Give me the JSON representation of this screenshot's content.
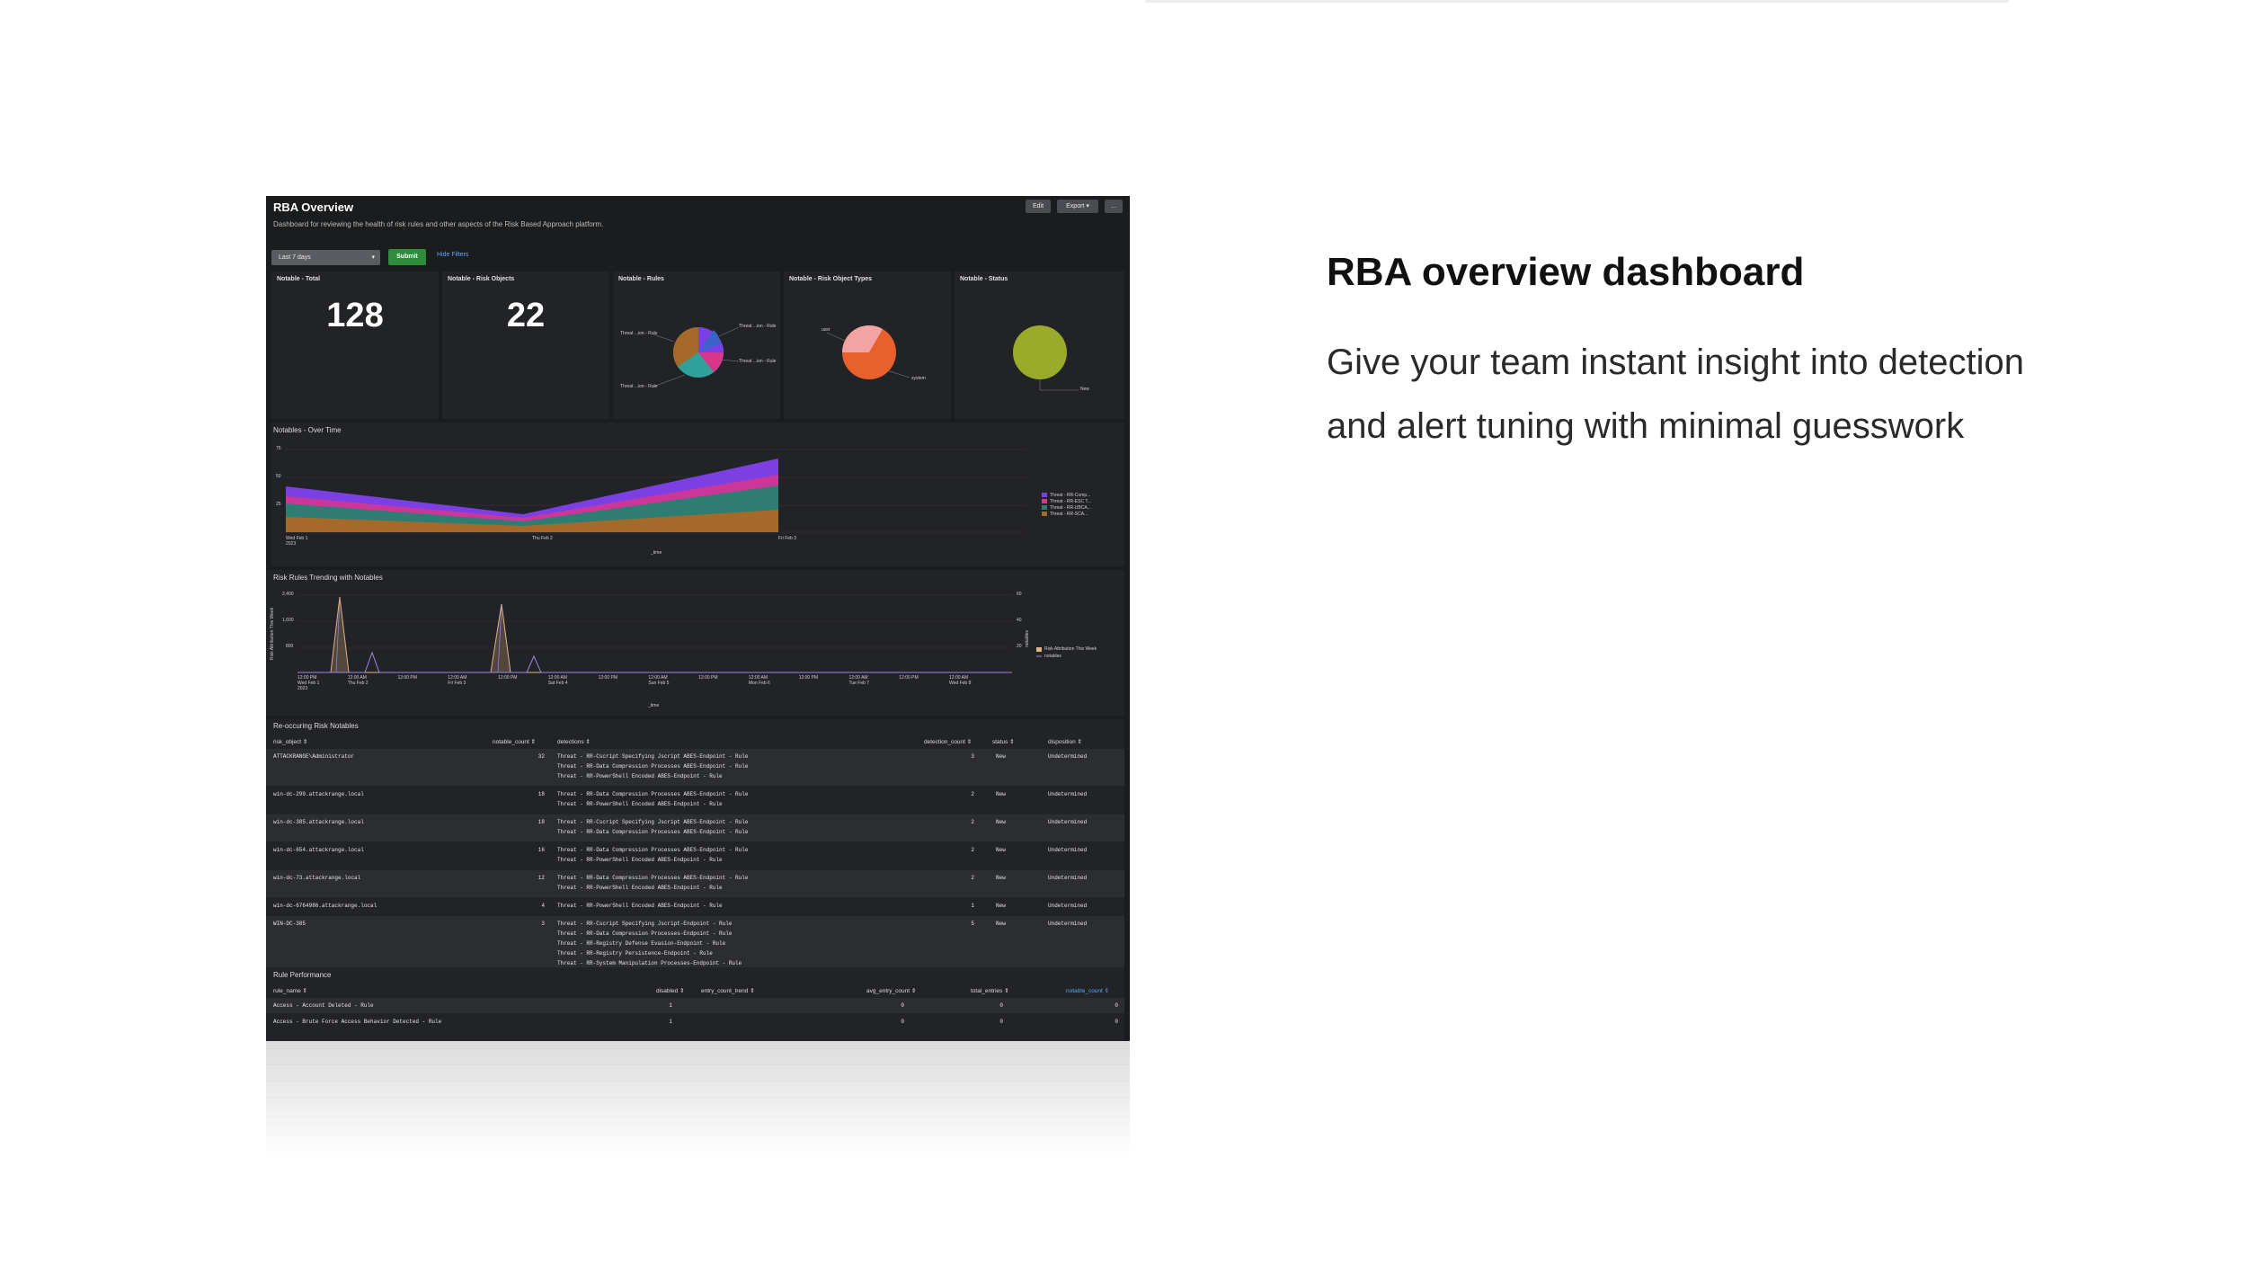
{
  "slide": {
    "heading": "RBA overview dashboard",
    "body": "Give your team instant insight into detection and alert tuning with minimal guesswork"
  },
  "dashboard": {
    "title": "RBA Overview",
    "description": "Dashboard for reviewing the health of risk rules and other aspects of the Risk Based Approach platform.",
    "buttons": {
      "edit": "Edit",
      "export": "Export ▾",
      "more": "..."
    },
    "time_picker": "Last 7 days",
    "submit": "Submit",
    "hide_filters": "Hide Filters",
    "kpis": [
      {
        "title": "Notable - Total",
        "value": "128"
      },
      {
        "title": "Notable - Risk Objects",
        "value": "22"
      }
    ],
    "pie_rules": {
      "title": "Notable - Rules",
      "labels": [
        "Threat ...ion - Rule",
        "Threat ...ion - Rule",
        "Threat ...ion - Rule",
        "Threat ...ion - Rule"
      ],
      "colors": [
        "#7b3fe4",
        "#d9368b",
        "#2fa39b",
        "#a56a2a",
        "#3c63c9"
      ]
    },
    "pie_types": {
      "title": "Notable - Risk Object Types",
      "labels": [
        "user",
        "system"
      ],
      "colors": [
        "#f4a3a3",
        "#e8602c"
      ]
    },
    "pie_status": {
      "title": "Notable - Status",
      "labels": [
        "New"
      ],
      "colors": [
        "#9aab2c"
      ]
    },
    "over_time": {
      "title": "Notables - Over Time",
      "xlabel": "_time",
      "yticks": [
        "75",
        "50",
        "25"
      ],
      "xticks": [
        "Wed Feb 1\n2023",
        "Thu Feb 2",
        "Fri Feb 3"
      ],
      "legend": [
        "Threat - RR-Comp...",
        "Threat - RR-ESC T...",
        "Threat - RR-UBCA...",
        "Threat - RR-SCA..."
      ],
      "colors": [
        "#7b3fe4",
        "#d9368b",
        "#2f7d72",
        "#a56a2a"
      ]
    },
    "trending": {
      "title": "Risk Rules Trending with Notables",
      "ylabel": "Risk Attribution This Week",
      "y2label": "notables",
      "xlabel": "_time",
      "yticks": [
        "2,400",
        "1,600",
        "800"
      ],
      "y2ticks": [
        "60",
        "40",
        "20"
      ],
      "xticks": [
        "12:00 PM\nWed Feb 1\n2023",
        "12:00 AM\nThu Feb 2",
        "12:00 PM",
        "12:00 AM\nFri Feb 3",
        "12:00 PM",
        "12:00 AM\nSat Feb 4",
        "12:00 PM",
        "12:00 AM\nSun Feb 5",
        "12:00 PM",
        "12:00 AM\nMon Feb 6",
        "12:00 PM",
        "12:00 AM\nTue Feb 7",
        "12:00 PM",
        "12:00 AM\nWed Feb 8"
      ],
      "legend": [
        "Risk Attribution This Week",
        "notables"
      ],
      "colors": [
        "#e0b483",
        "#9b86e8"
      ]
    },
    "reoccurring": {
      "title": "Re-occuring Risk Notables",
      "columns": [
        "risk_object ⇕",
        "notable_count ⇕",
        "detections ⇕",
        "detection_count ⇕",
        "status ⇕",
        "disposition ⇕"
      ],
      "rows": [
        {
          "risk_object": "ATTACKRANGE\\Administrator",
          "notable_count": "32",
          "detections": [
            "Threat - RR-Cscript Specifying Jscript ABES-Endpoint - Rule",
            "Threat - RR-Data Compression Processes ABES-Endpoint - Rule",
            "Threat - RR-PowerShell Encoded ABES-Endpoint - Rule"
          ],
          "detection_count": "3",
          "status": "New",
          "disposition": "Undetermined"
        },
        {
          "risk_object": "win-dc-299.attackrange.local",
          "notable_count": "18",
          "detections": [
            "Threat - RR-Data Compression Processes ABES-Endpoint - Rule",
            "Threat - RR-PowerShell Encoded ABES-Endpoint - Rule"
          ],
          "detection_count": "2",
          "status": "New",
          "disposition": "Undetermined"
        },
        {
          "risk_object": "win-dc-385.attackrange.local",
          "notable_count": "18",
          "detections": [
            "Threat - RR-Cscript Specifying Jscript ABES-Endpoint - Rule",
            "Threat - RR-Data Compression Processes ABES-Endpoint - Rule"
          ],
          "detection_count": "2",
          "status": "New",
          "disposition": "Undetermined"
        },
        {
          "risk_object": "win-dc-654.attackrange.local",
          "notable_count": "16",
          "detections": [
            "Threat - RR-Data Compression Processes ABES-Endpoint - Rule",
            "Threat - RR-PowerShell Encoded ABES-Endpoint - Rule"
          ],
          "detection_count": "2",
          "status": "New",
          "disposition": "Undetermined"
        },
        {
          "risk_object": "win-dc-73.attackrange.local",
          "notable_count": "12",
          "detections": [
            "Threat - RR-Data Compression Processes ABES-Endpoint - Rule",
            "Threat - RR-PowerShell Encoded ABES-Endpoint - Rule"
          ],
          "detection_count": "2",
          "status": "New",
          "disposition": "Undetermined"
        },
        {
          "risk_object": "win-dc-6764986.attackrange.local",
          "notable_count": "4",
          "detections": [
            "Threat - RR-PowerShell Encoded ABES-Endpoint - Rule"
          ],
          "detection_count": "1",
          "status": "New",
          "disposition": "Undetermined"
        },
        {
          "risk_object": "WIN-DC-385",
          "notable_count": "3",
          "detections": [
            "Threat - RR-Cscript Specifying Jscript-Endpoint - Rule",
            "Threat - RR-Data Compression Processes-Endpoint - Rule",
            "Threat - RR-Registry Defense Evasion-Endpoint - Rule",
            "Threat - RR-Registry Persistence-Endpoint - Rule",
            "Threat - RR-System Manipulation Processes-Endpoint - Rule"
          ],
          "detection_count": "5",
          "status": "New",
          "disposition": "Undetermined"
        }
      ]
    },
    "rule_performance": {
      "title": "Rule Performance",
      "columns": [
        "rule_name ⇕",
        "disabled ⇕",
        "entry_count_trend ⇕",
        "avg_entry_count ⇕",
        "total_entries ⇕",
        "notable_count ⇕"
      ],
      "rows": [
        {
          "rule_name": "Access - Account Deleted - Rule",
          "disabled": "1",
          "avg": "0",
          "total": "0",
          "notable": "0"
        },
        {
          "rule_name": "Access - Brute Force Access Behavior Detected - Rule",
          "disabled": "1",
          "avg": "0",
          "total": "0",
          "notable": "0"
        }
      ]
    }
  }
}
